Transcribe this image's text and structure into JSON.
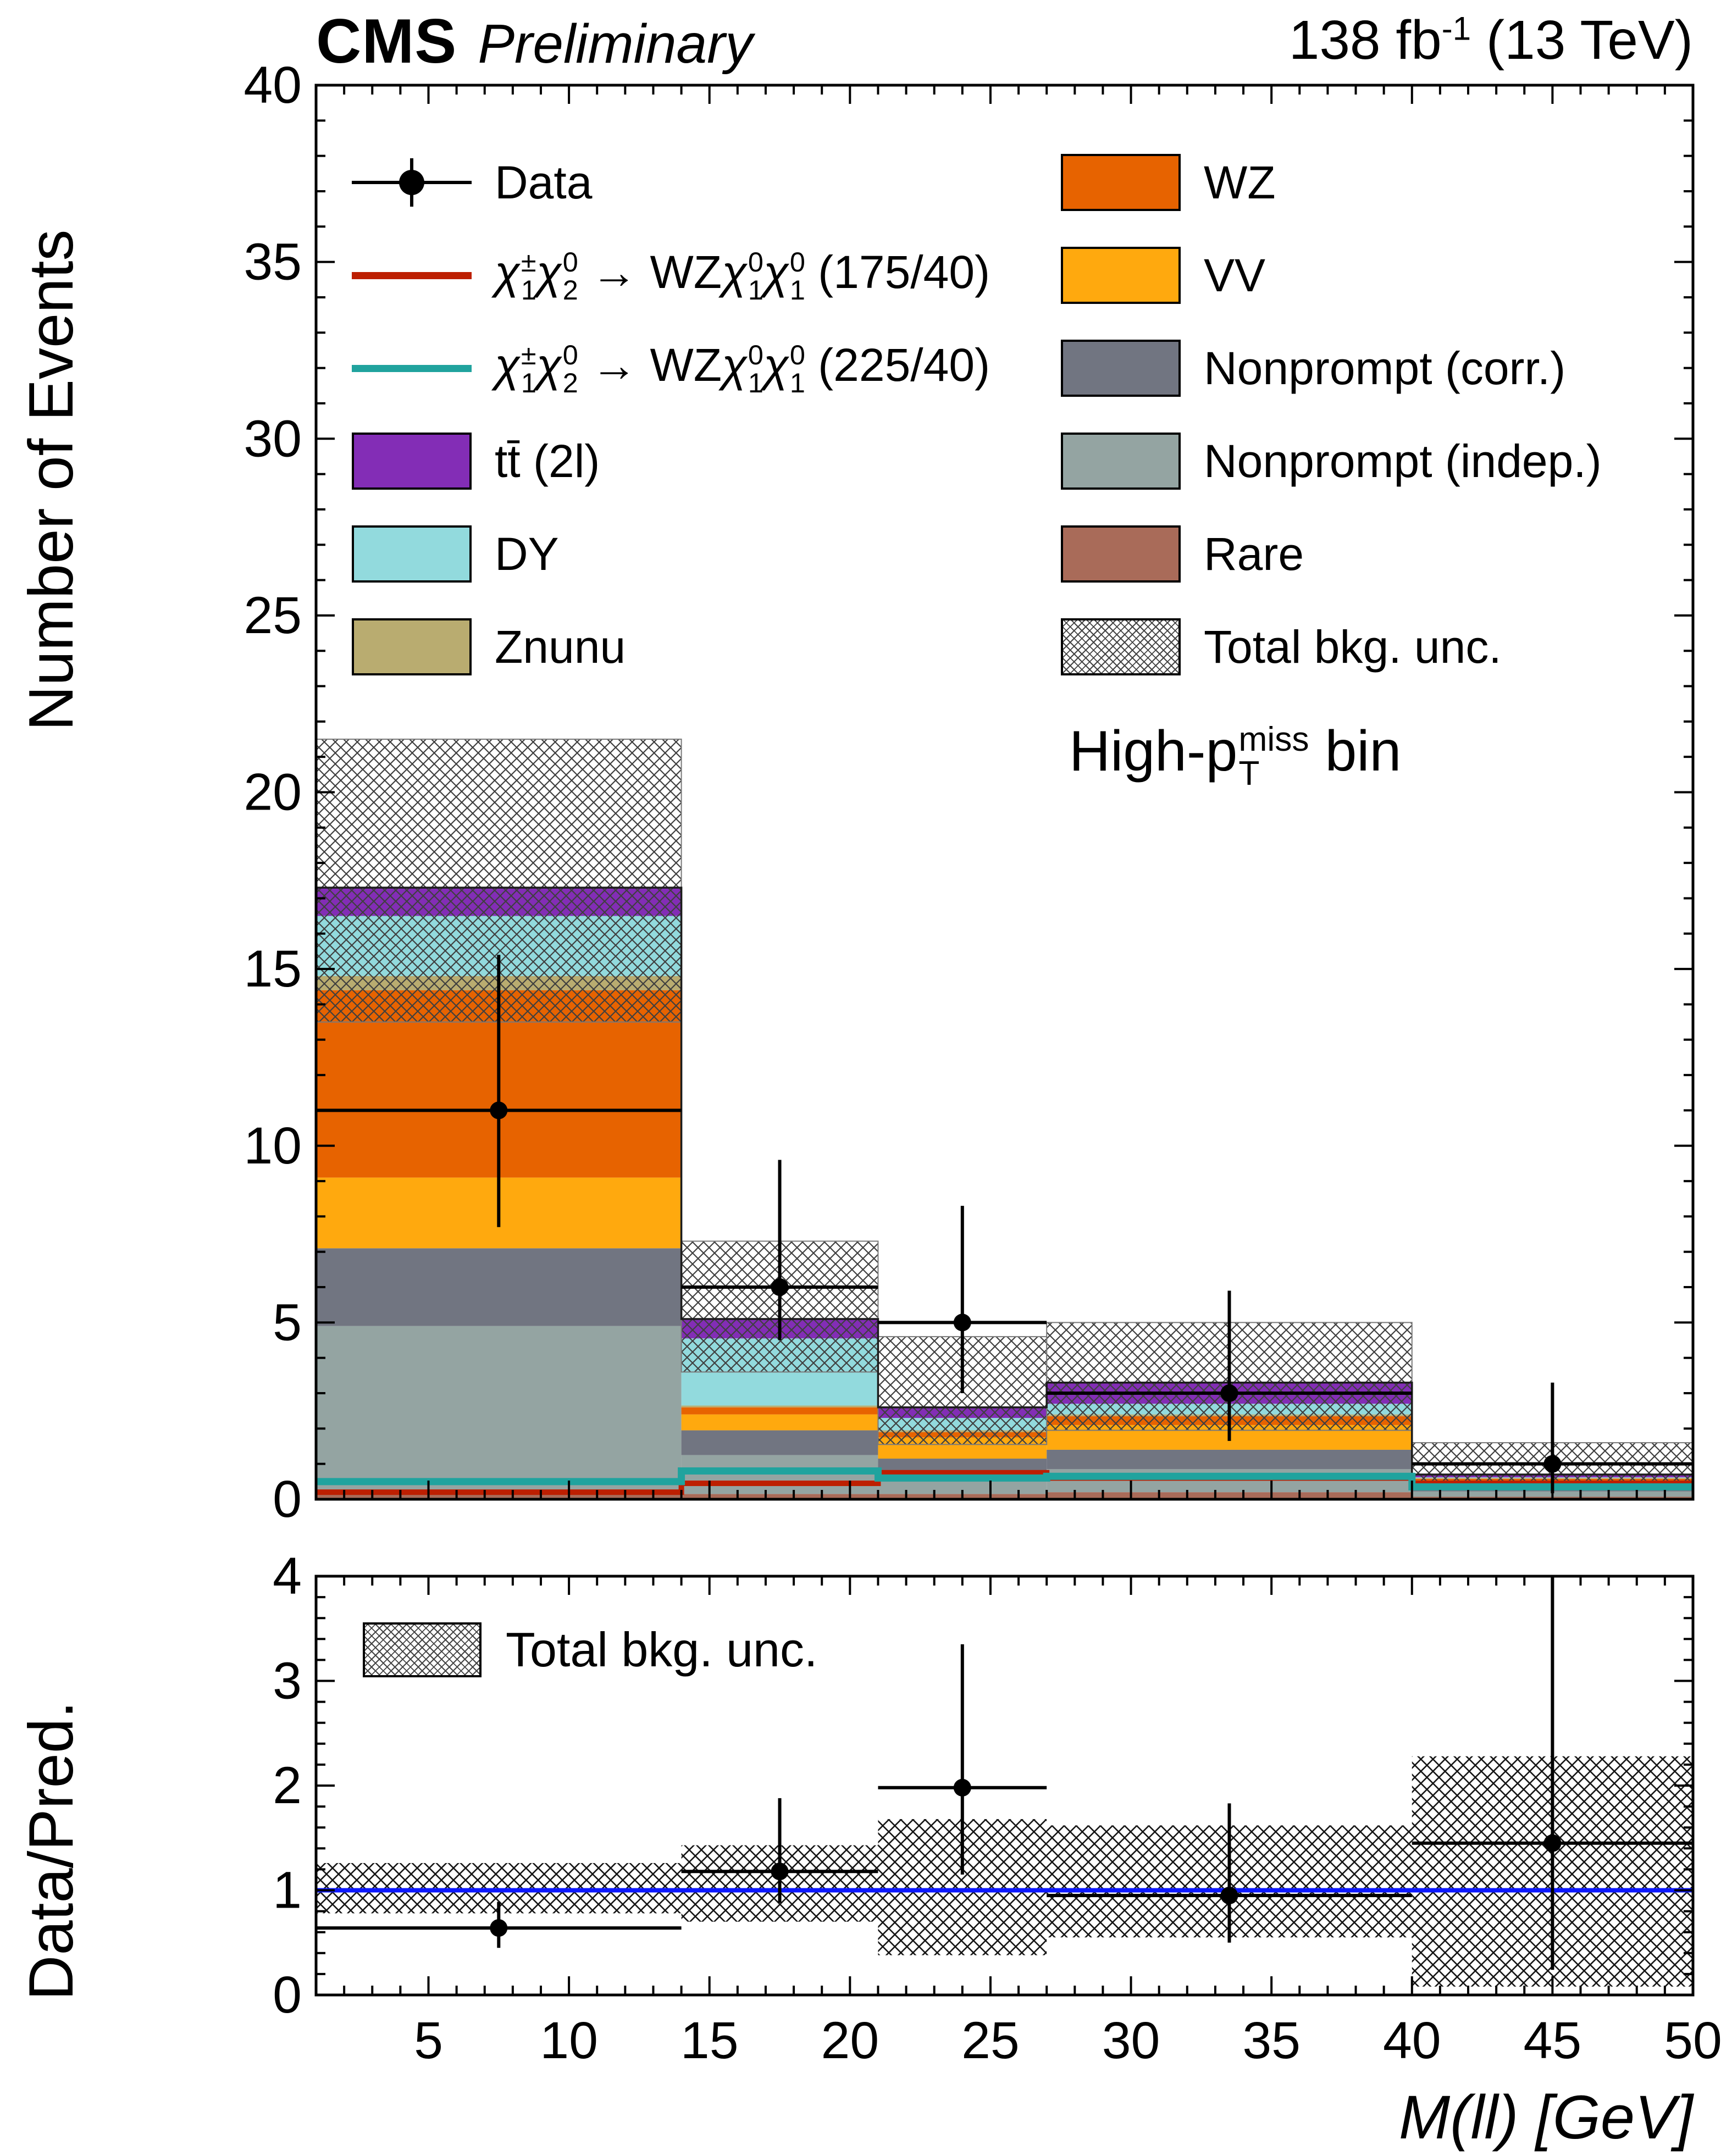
{
  "header": {
    "experiment": "CMS",
    "label": "Preliminary",
    "lumi_segments": [
      {
        "t": "138 fb"
      },
      {
        "sup": "-1"
      },
      {
        "t": " (13 TeV)"
      }
    ]
  },
  "annotation_segments": [
    {
      "t": "High-p"
    },
    {
      "sub": "T",
      "sup": "miss"
    },
    {
      "t": " bin"
    }
  ],
  "xlabel_segments": [
    {
      "t": "M(ll)",
      "italic": true
    },
    {
      "t": " [GeV]",
      "italic": true
    }
  ],
  "ratio_legend": {
    "label": "Total bkg. unc."
  },
  "legend": {
    "left": [
      {
        "id": "data",
        "swatch": "marker",
        "label": [
          {
            "t": "Data"
          }
        ]
      },
      {
        "id": "signal-175-40",
        "swatch": "line",
        "color": "#bd1f01",
        "label": [
          {
            "t": "χ",
            "sup": "±",
            "sub": "1",
            "italic": true
          },
          {
            "t": "χ",
            "sup": "0",
            "sub": "2",
            "italic": true
          },
          {
            "t": " → WZ"
          },
          {
            "t": "χ",
            "sup": "0",
            "sub": "1",
            "italic": true
          },
          {
            "t": "χ",
            "sup": "0",
            "sub": "1",
            "italic": true
          },
          {
            "t": " (175/40)"
          }
        ]
      },
      {
        "id": "signal-225-40",
        "swatch": "line",
        "color": "#20a39e",
        "label": [
          {
            "t": "χ",
            "sup": "±",
            "sub": "1",
            "italic": true
          },
          {
            "t": "χ",
            "sup": "0",
            "sub": "2",
            "italic": true
          },
          {
            "t": " → WZ"
          },
          {
            "t": "χ",
            "sup": "0",
            "sub": "1",
            "italic": true
          },
          {
            "t": "χ",
            "sup": "0",
            "sub": "1",
            "italic": true
          },
          {
            "t": " (225/40)"
          }
        ]
      },
      {
        "id": "ttbar-2l",
        "swatch": "box",
        "color": "#832db6",
        "label": [
          {
            "t": "tt̄ (2l)"
          }
        ]
      },
      {
        "id": "dy",
        "swatch": "box",
        "color": "#92dadd",
        "label": [
          {
            "t": "DY"
          }
        ]
      },
      {
        "id": "znunu",
        "swatch": "box",
        "color": "#b9ac70",
        "label": [
          {
            "t": "Znunu"
          }
        ]
      }
    ],
    "right": [
      {
        "id": "wz",
        "swatch": "box",
        "color": "#e76300",
        "label": [
          {
            "t": "WZ"
          }
        ]
      },
      {
        "id": "vv",
        "swatch": "box",
        "color": "#ffa90e",
        "label": [
          {
            "t": "VV"
          }
        ]
      },
      {
        "id": "nonprompt-corr",
        "swatch": "box",
        "color": "#717581",
        "label": [
          {
            "t": "Nonprompt (corr.)"
          }
        ]
      },
      {
        "id": "nonprompt-indep",
        "swatch": "box",
        "color": "#94a4a2",
        "label": [
          {
            "t": "Nonprompt (indep.)"
          }
        ]
      },
      {
        "id": "rare",
        "swatch": "box",
        "color": "#a96b59",
        "label": [
          {
            "t": "Rare"
          }
        ]
      },
      {
        "id": "total-unc",
        "swatch": "hatch",
        "label": [
          {
            "t": "Total bkg. unc."
          }
        ]
      }
    ]
  },
  "chart_data": [
    {
      "type": "bar",
      "subtype": "stacked-histogram",
      "panel": "main",
      "title": "CMS Preliminary, 138 fb-1 (13 TeV), High-pT miss bin",
      "xlabel": "M(ll) [GeV]",
      "ylabel": "Number of Events",
      "xlim": [
        1,
        50
      ],
      "ylim": [
        0,
        40
      ],
      "y_ticks": [
        0,
        5,
        10,
        15,
        20,
        25,
        30,
        35,
        40
      ],
      "x_edges": [
        1,
        14,
        21,
        27,
        40,
        50
      ],
      "series": [
        {
          "name": "Rare",
          "color": "#a96b59",
          "values": [
            0.25,
            0.15,
            0.15,
            0.2,
            0.07
          ]
        },
        {
          "name": "Nonprompt (indep.)",
          "color": "#94a4a2",
          "values": [
            4.65,
            1.1,
            0.55,
            0.65,
            0.15
          ]
        },
        {
          "name": "Nonprompt (corr.)",
          "color": "#717581",
          "values": [
            2.2,
            0.7,
            0.45,
            0.55,
            0.1
          ]
        },
        {
          "name": "VV",
          "color": "#ffa90e",
          "values": [
            2.0,
            0.45,
            0.6,
            0.7,
            0.2
          ]
        },
        {
          "name": "WZ",
          "color": "#e76300",
          "values": [
            5.3,
            0.2,
            0.15,
            0.25,
            0.06
          ]
        },
        {
          "name": "Znunu",
          "color": "#b9ac70",
          "values": [
            0.4,
            0.05,
            0.05,
            0.05,
            0.02
          ]
        },
        {
          "name": "DY",
          "color": "#92dadd",
          "values": [
            1.7,
            1.9,
            0.35,
            0.3,
            0.02
          ]
        },
        {
          "name": "tt (2l)",
          "color": "#832db6",
          "values": [
            0.8,
            0.55,
            0.3,
            0.6,
            0.08
          ]
        }
      ],
      "total_unc": {
        "low": [
          13.5,
          3.6,
          1.55,
          1.95,
          0.45
        ],
        "high": [
          21.5,
          7.3,
          4.6,
          5.0,
          1.6
        ]
      },
      "signals": [
        {
          "name": "chi 175/40",
          "color": "#bd1f01",
          "width": 10,
          "values": [
            0.2,
            0.45,
            0.75,
            0.6,
            0.45
          ]
        },
        {
          "name": "chi 225/40",
          "color": "#20a39e",
          "width": 13,
          "values": [
            0.5,
            0.8,
            0.6,
            0.65,
            0.35
          ]
        }
      ],
      "data_points": {
        "x": [
          7.5,
          17.5,
          24,
          33.5,
          45
        ],
        "y": [
          11,
          6,
          5,
          3,
          1
        ],
        "y_lo": [
          7.7,
          4.5,
          3.0,
          1.65,
          0.17
        ],
        "y_hi": [
          15.4,
          9.6,
          8.3,
          5.9,
          3.3
        ]
      }
    },
    {
      "type": "scatter",
      "subtype": "ratio",
      "panel": "ratio",
      "ylabel": "Data/Pred.",
      "xlabel": "M(ll) [GeV]",
      "xlim": [
        1,
        50
      ],
      "ylim": [
        0,
        4
      ],
      "y_ticks": [
        0,
        1,
        2,
        3,
        4
      ],
      "x_ticks": [
        5,
        10,
        15,
        20,
        25,
        30,
        35,
        40,
        45,
        50
      ],
      "ref_line": 1,
      "values": [
        0.64,
        1.18,
        1.98,
        0.95,
        1.45
      ],
      "err_low": [
        0.45,
        0.88,
        1.15,
        0.5,
        0.24
      ],
      "err_high": [
        0.89,
        1.88,
        3.35,
        1.83,
        4.7
      ],
      "band_low": [
        0.78,
        0.7,
        0.38,
        0.55,
        0.08
      ],
      "band_high": [
        1.26,
        1.43,
        1.68,
        1.62,
        2.28
      ]
    }
  ]
}
